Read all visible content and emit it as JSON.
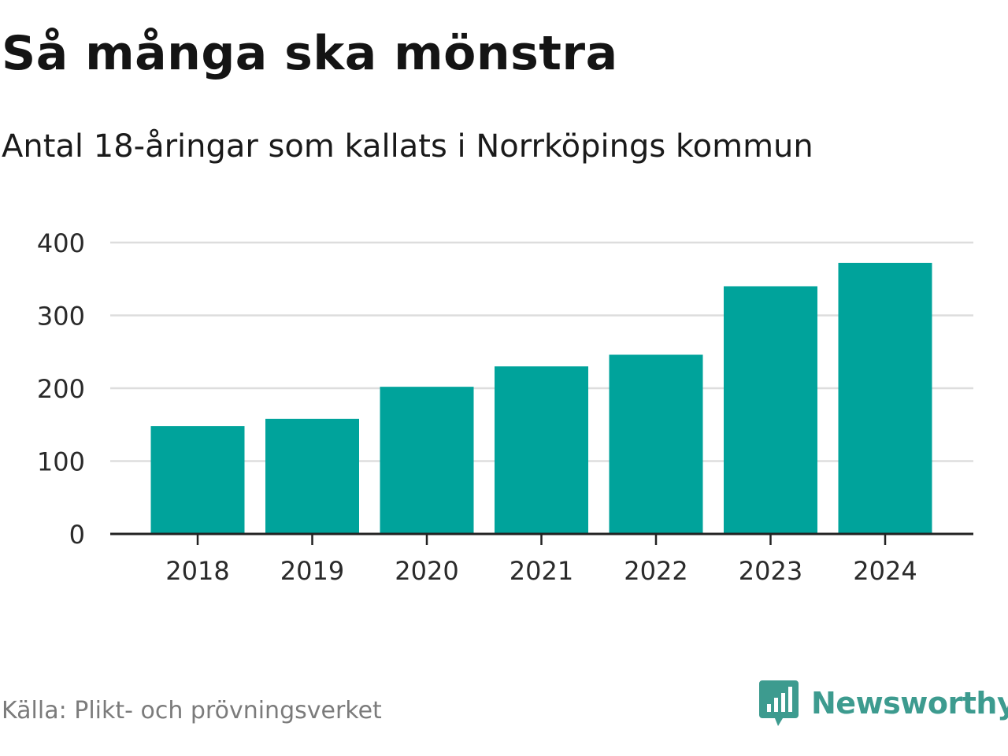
{
  "header": {
    "title": "Så många ska mönstra",
    "subtitle": "Antal 18-åringar som kallats i Norrköpings kommun"
  },
  "footer": {
    "source": "Källa: Plikt- och prövningsverket",
    "brand": "Newsworthy",
    "brand_icon": "newsworthy-logo-icon"
  },
  "colors": {
    "bar": "#00a39b",
    "grid": "#dddddd",
    "axis": "#222222",
    "tick_text": "#2a2a2a",
    "brand": "#3d9b8f"
  },
  "chart_data": {
    "type": "bar",
    "title": "Så många ska mönstra",
    "subtitle": "Antal 18-åringar som kallats i Norrköpings kommun",
    "xlabel": "",
    "ylabel": "",
    "categories": [
      "2018",
      "2019",
      "2020",
      "2021",
      "2022",
      "2023",
      "2024"
    ],
    "values": [
      148,
      158,
      202,
      230,
      246,
      340,
      372
    ],
    "ylim": [
      0,
      400
    ],
    "yticks": [
      0,
      100,
      200,
      300,
      400
    ],
    "ytick_labels": [
      "0",
      "100",
      "200",
      "300",
      "400"
    ],
    "grid": true,
    "legend": "none"
  }
}
